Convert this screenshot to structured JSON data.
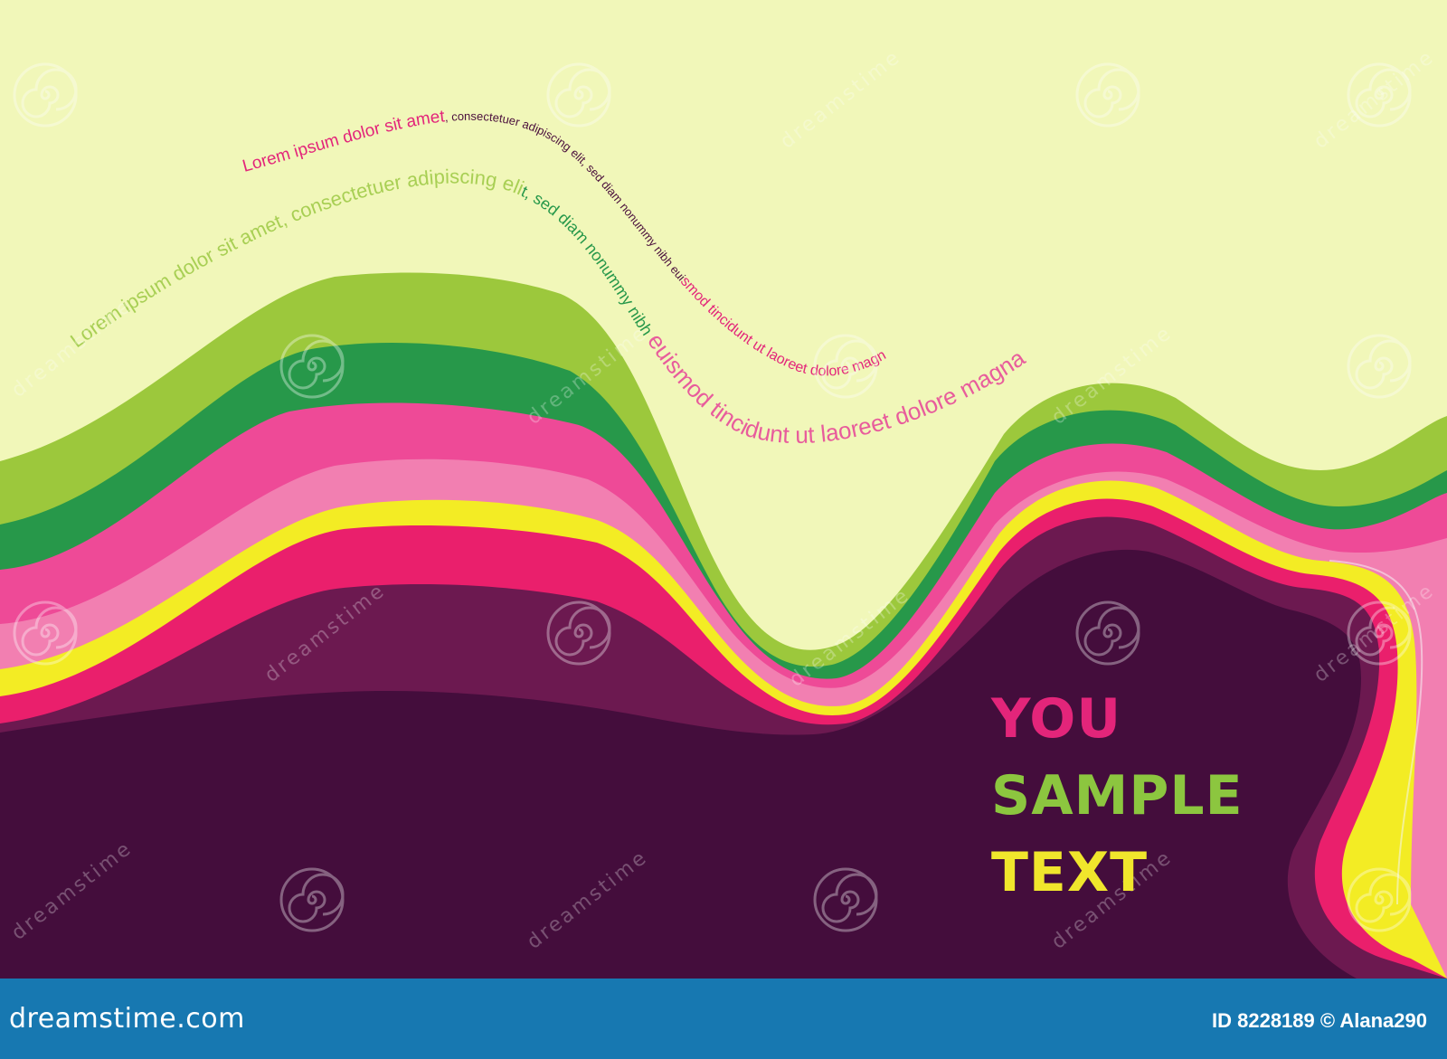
{
  "colors": {
    "background": "#f1f7b9",
    "light_green": "#9cc83c",
    "dark_green": "#27984a",
    "hot_pink": "#ee4a97",
    "light_pink": "#f27fb1",
    "yellow": "#f3ec24",
    "magenta": "#ea1f6c",
    "plum": "#6c1950",
    "deep_purple": "#440d3c",
    "footer_blue": "#1778b1",
    "text_pink": "#e3257a",
    "text_green": "#8cc63f",
    "text_yellow": "#f0e62c"
  },
  "wave_text": {
    "line1_part1": "Lorem ipsum dolor sit amet",
    "line1_part2": ", consectetuer adipiscing elit, sed diam nonummy nibh eui",
    "line1_part3": "smod tincidunt ut laoreet dolore magn",
    "line2_part1": "Lorem ipsum dolor sit amet, consectetuer adipiscing eli",
    "line2_part2": "t, sed diam nonummy nibh ",
    "line2_part3": "euismod tincidunt ut laoreet dolore magna"
  },
  "headline": {
    "line1": "YOU",
    "line2": "SAMPLE",
    "line3": "TEXT"
  },
  "watermark": {
    "word": "dreamstime",
    "icon": "spiral-icon"
  },
  "footer": {
    "site": "dreamstime.com",
    "credit": "ID 8228189 © Alana290"
  }
}
